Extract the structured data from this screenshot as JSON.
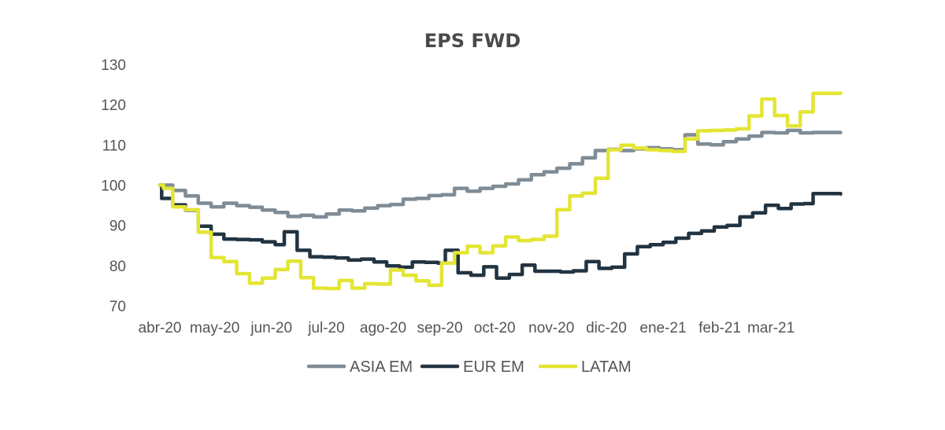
{
  "chart_data": {
    "type": "line",
    "title": "EPS FWD",
    "xlabel": "",
    "ylabel": "",
    "ylim": [
      70,
      130
    ],
    "yticks": [
      "130",
      "120",
      "110",
      "100",
      "90",
      "80",
      "70"
    ],
    "xtick_labels": [
      "abr-20",
      "may-20",
      "jun-20",
      "jul-20",
      "ago-20",
      "sep-20",
      "oct-20",
      "nov-20",
      "dic-20",
      "ene-21",
      "feb-21",
      "mar-21"
    ],
    "x_range": [
      "2020-04-01",
      "2021-04-10"
    ],
    "grid": false,
    "legend_position": "bottom",
    "series": [
      {
        "name": "ASIA EM",
        "color": "#7f8c96",
        "points": [
          [
            "2020-04-01",
            100
          ],
          [
            "2020-04-08",
            98.7
          ],
          [
            "2020-04-15",
            97.3
          ],
          [
            "2020-04-22",
            95.5
          ],
          [
            "2020-04-29",
            94.6
          ],
          [
            "2020-05-06",
            95.5
          ],
          [
            "2020-05-13",
            94.9
          ],
          [
            "2020-05-20",
            94.5
          ],
          [
            "2020-05-27",
            93.8
          ],
          [
            "2020-06-03",
            93.2
          ],
          [
            "2020-06-10",
            92.2
          ],
          [
            "2020-06-17",
            92.5
          ],
          [
            "2020-06-24",
            92.1
          ],
          [
            "2020-07-01",
            92.8
          ],
          [
            "2020-07-08",
            93.8
          ],
          [
            "2020-07-15",
            93.6
          ],
          [
            "2020-07-22",
            94.3
          ],
          [
            "2020-07-29",
            94.9
          ],
          [
            "2020-08-05",
            95.2
          ],
          [
            "2020-08-12",
            96.5
          ],
          [
            "2020-08-19",
            96.7
          ],
          [
            "2020-08-26",
            97.4
          ],
          [
            "2020-09-02",
            97.6
          ],
          [
            "2020-09-09",
            99.2
          ],
          [
            "2020-09-16",
            98.5
          ],
          [
            "2020-09-23",
            99.2
          ],
          [
            "2020-09-30",
            99.7
          ],
          [
            "2020-10-07",
            100.3
          ],
          [
            "2020-10-14",
            101.3
          ],
          [
            "2020-10-21",
            102.6
          ],
          [
            "2020-10-28",
            103.3
          ],
          [
            "2020-11-04",
            104.2
          ],
          [
            "2020-11-11",
            105.3
          ],
          [
            "2020-11-18",
            106.8
          ],
          [
            "2020-11-25",
            108.6
          ],
          [
            "2020-12-02",
            108.9
          ],
          [
            "2020-12-09",
            108.6
          ],
          [
            "2020-12-16",
            109.0
          ],
          [
            "2020-12-23",
            109.3
          ],
          [
            "2020-12-30",
            109.0
          ],
          [
            "2021-01-06",
            108.8
          ],
          [
            "2021-01-13",
            112.5
          ],
          [
            "2021-01-20",
            110.2
          ],
          [
            "2021-01-27",
            110.0
          ],
          [
            "2021-02-03",
            110.8
          ],
          [
            "2021-02-10",
            111.5
          ],
          [
            "2021-02-17",
            112.2
          ],
          [
            "2021-02-24",
            113.1
          ],
          [
            "2021-03-03",
            113.0
          ],
          [
            "2021-03-10",
            113.6
          ],
          [
            "2021-03-17",
            113.0
          ],
          [
            "2021-03-24",
            113.1
          ],
          [
            "2021-04-08",
            113.1
          ]
        ]
      },
      {
        "name": "EUR EM",
        "color": "#223341",
        "points": [
          [
            "2020-04-01",
            100
          ],
          [
            "2020-04-02",
            96.7
          ],
          [
            "2020-04-08",
            95.1
          ],
          [
            "2020-04-15",
            93.8
          ],
          [
            "2020-04-22",
            89.8
          ],
          [
            "2020-04-29",
            87.8
          ],
          [
            "2020-05-06",
            86.6
          ],
          [
            "2020-05-13",
            86.5
          ],
          [
            "2020-05-20",
            86.4
          ],
          [
            "2020-05-27",
            85.9
          ],
          [
            "2020-06-03",
            85.2
          ],
          [
            "2020-06-08",
            88.4
          ],
          [
            "2020-06-15",
            83.8
          ],
          [
            "2020-06-22",
            82.2
          ],
          [
            "2020-06-29",
            82.1
          ],
          [
            "2020-07-06",
            81.9
          ],
          [
            "2020-07-13",
            81.4
          ],
          [
            "2020-07-20",
            81.6
          ],
          [
            "2020-07-27",
            80.9
          ],
          [
            "2020-08-03",
            79.9
          ],
          [
            "2020-08-10",
            79.6
          ],
          [
            "2020-08-17",
            80.9
          ],
          [
            "2020-08-24",
            80.8
          ],
          [
            "2020-08-31",
            80.6
          ],
          [
            "2020-09-04",
            83.8
          ],
          [
            "2020-09-11",
            78.2
          ],
          [
            "2020-09-18",
            77.6
          ],
          [
            "2020-09-25",
            79.7
          ],
          [
            "2020-10-02",
            76.9
          ],
          [
            "2020-10-09",
            77.8
          ],
          [
            "2020-10-16",
            80.1
          ],
          [
            "2020-10-23",
            78.6
          ],
          [
            "2020-10-30",
            78.6
          ],
          [
            "2020-11-06",
            78.4
          ],
          [
            "2020-11-13",
            78.7
          ],
          [
            "2020-11-20",
            81.0
          ],
          [
            "2020-11-27",
            79.3
          ],
          [
            "2020-12-04",
            79.6
          ],
          [
            "2020-12-11",
            82.9
          ],
          [
            "2020-12-18",
            84.7
          ],
          [
            "2020-12-25",
            85.2
          ],
          [
            "2021-01-01",
            85.8
          ],
          [
            "2021-01-08",
            86.8
          ],
          [
            "2021-01-15",
            88.0
          ],
          [
            "2021-01-22",
            88.6
          ],
          [
            "2021-01-29",
            89.6
          ],
          [
            "2021-02-05",
            90.0
          ],
          [
            "2021-02-12",
            92.1
          ],
          [
            "2021-02-19",
            93.1
          ],
          [
            "2021-02-26",
            95.0
          ],
          [
            "2021-03-05",
            94.2
          ],
          [
            "2021-03-12",
            95.3
          ],
          [
            "2021-03-19",
            95.4
          ],
          [
            "2021-03-24",
            97.9
          ],
          [
            "2021-04-08",
            97.8
          ]
        ]
      },
      {
        "name": "LATAM",
        "color": "#e3e533",
        "points": [
          [
            "2020-04-01",
            100
          ],
          [
            "2020-04-03",
            99.2
          ],
          [
            "2020-04-08",
            94.6
          ],
          [
            "2020-04-15",
            93.9
          ],
          [
            "2020-04-22",
            88.3
          ],
          [
            "2020-04-29",
            82.0
          ],
          [
            "2020-05-06",
            81.0
          ],
          [
            "2020-05-13",
            78.0
          ],
          [
            "2020-05-20",
            75.6
          ],
          [
            "2020-05-27",
            76.9
          ],
          [
            "2020-06-03",
            79.0
          ],
          [
            "2020-06-10",
            81.1
          ],
          [
            "2020-06-17",
            77.0
          ],
          [
            "2020-06-24",
            74.4
          ],
          [
            "2020-07-01",
            74.3
          ],
          [
            "2020-07-08",
            76.3
          ],
          [
            "2020-07-15",
            74.4
          ],
          [
            "2020-07-22",
            75.5
          ],
          [
            "2020-07-29",
            75.4
          ],
          [
            "2020-08-05",
            78.9
          ],
          [
            "2020-08-12",
            77.6
          ],
          [
            "2020-08-19",
            76.2
          ],
          [
            "2020-08-26",
            75.1
          ],
          [
            "2020-09-02",
            80.6
          ],
          [
            "2020-09-09",
            83.2
          ],
          [
            "2020-09-16",
            84.8
          ],
          [
            "2020-09-23",
            83.2
          ],
          [
            "2020-09-30",
            84.9
          ],
          [
            "2020-10-07",
            87.1
          ],
          [
            "2020-10-14",
            86.2
          ],
          [
            "2020-10-21",
            86.5
          ],
          [
            "2020-10-28",
            87.3
          ],
          [
            "2020-11-04",
            93.9
          ],
          [
            "2020-11-11",
            97.3
          ],
          [
            "2020-11-18",
            98.0
          ],
          [
            "2020-11-25",
            101.7
          ],
          [
            "2020-12-02",
            108.8
          ],
          [
            "2020-12-09",
            109.9
          ],
          [
            "2020-12-16",
            109.2
          ],
          [
            "2020-12-23",
            108.8
          ],
          [
            "2020-12-30",
            108.6
          ],
          [
            "2021-01-06",
            108.4
          ],
          [
            "2021-01-13",
            111.5
          ],
          [
            "2021-01-20",
            113.5
          ],
          [
            "2021-01-27",
            113.6
          ],
          [
            "2021-02-03",
            113.7
          ],
          [
            "2021-02-10",
            114.0
          ],
          [
            "2021-02-17",
            117.2
          ],
          [
            "2021-02-24",
            121.4
          ],
          [
            "2021-03-03",
            117.3
          ],
          [
            "2021-03-10",
            114.7
          ],
          [
            "2021-03-17",
            118.2
          ],
          [
            "2021-03-24",
            122.8
          ],
          [
            "2021-04-08",
            122.9
          ]
        ]
      }
    ]
  }
}
